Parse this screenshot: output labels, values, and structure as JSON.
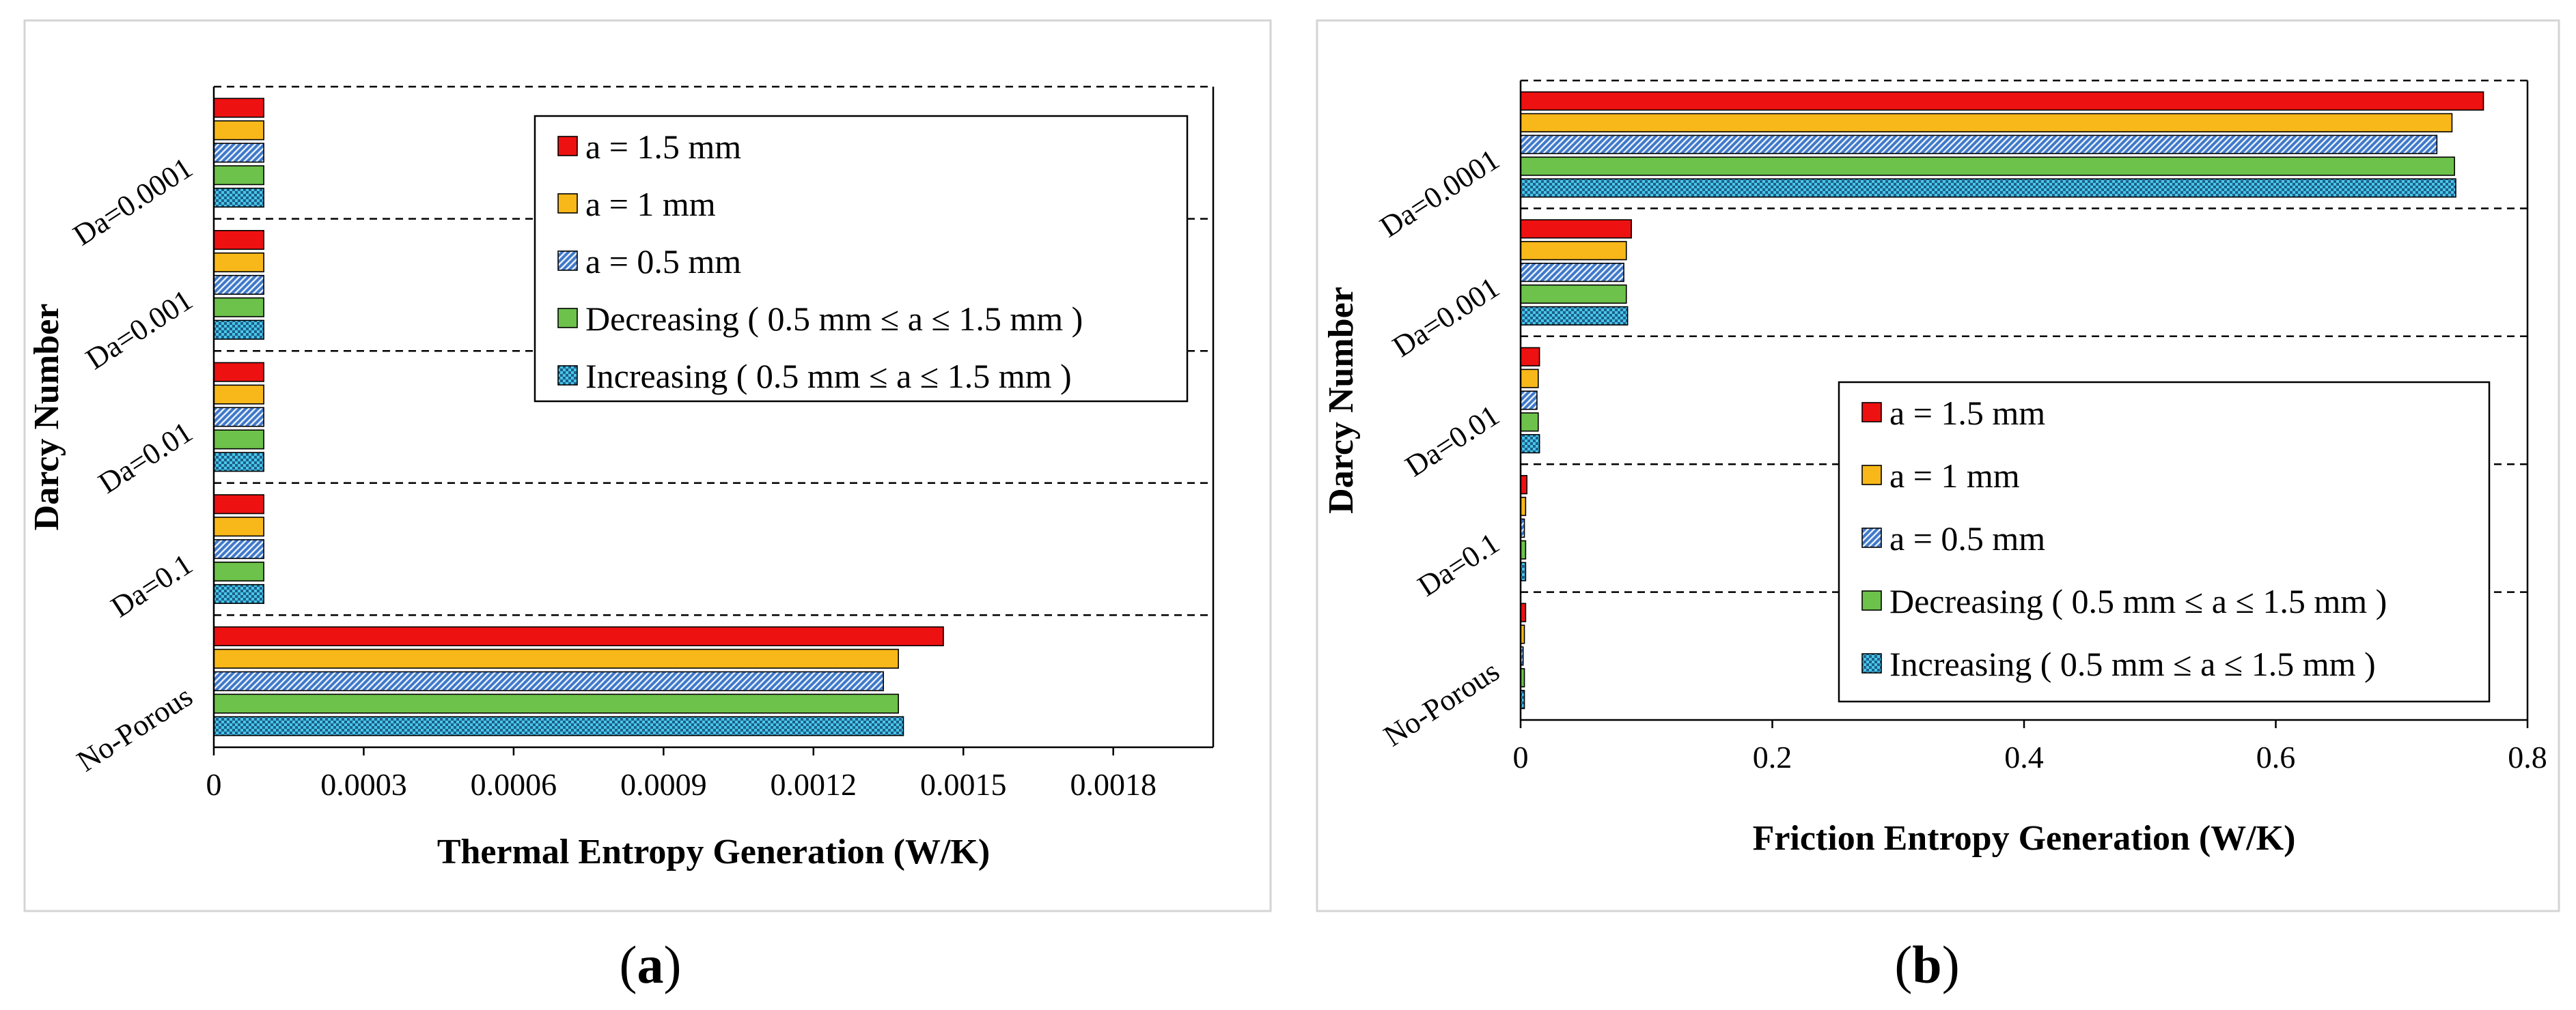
{
  "chart_data": [
    {
      "panel_label": "(a)",
      "panel_label_parts": {
        "open": "(",
        "letter": "a",
        "close": ")"
      },
      "type": "bar",
      "orientation": "horizontal",
      "xlabel": "Thermal Entropy Generation (W/K)",
      "ylabel": "Darcy Number",
      "xlim": [
        0,
        0.002
      ],
      "xticks": [
        "0",
        "0.0003",
        "0.0006",
        "0.0009",
        "0.0012",
        "0.0015",
        "0.0018"
      ],
      "xtick_values": [
        0,
        0.0003,
        0.0006,
        0.0009,
        0.0012,
        0.0015,
        0.0018
      ],
      "categories": [
        "Da=0.0001",
        "Da=0.001",
        "Da=0.01",
        "Da=0.1",
        "No-Porous"
      ],
      "legend_position": "top-right",
      "series": [
        {
          "name": "a = 1.5 mm",
          "values": [
            0.0001,
            0.0001,
            0.0001,
            0.0001,
            0.00146
          ]
        },
        {
          "name": "a = 1 mm",
          "values": [
            0.0001,
            0.0001,
            0.0001,
            0.0001,
            0.00137
          ]
        },
        {
          "name": "a = 0.5 mm",
          "values": [
            0.0001,
            0.0001,
            0.0001,
            0.0001,
            0.00134
          ]
        },
        {
          "name": "Decreasing ( 0.5 mm ≤ a ≤ 1.5 mm )",
          "values": [
            0.0001,
            0.0001,
            0.0001,
            0.0001,
            0.00137
          ]
        },
        {
          "name": "Increasing ( 0.5 mm ≤ a ≤ 1.5 mm )",
          "values": [
            0.0001,
            0.0001,
            0.0001,
            0.0001,
            0.00138
          ]
        }
      ]
    },
    {
      "panel_label": "(b)",
      "panel_label_parts": {
        "open": "(",
        "letter": "b",
        "close": ")"
      },
      "type": "bar",
      "orientation": "horizontal",
      "xlabel": "Friction Entropy Generation (W/K)",
      "ylabel": "Darcy Number",
      "xlim": [
        0,
        0.8
      ],
      "xticks": [
        "0",
        "0.2",
        "0.4",
        "0.6",
        "0.8"
      ],
      "xtick_values": [
        0,
        0.2,
        0.4,
        0.6,
        0.8
      ],
      "categories": [
        "Da=0.0001",
        "Da=0.001",
        "Da=0.01",
        "Da=0.1",
        "No-Porous"
      ],
      "legend_position": "bottom-right",
      "series": [
        {
          "name": "a = 1.5 mm",
          "values": [
            0.765,
            0.088,
            0.015,
            0.005,
            0.004
          ]
        },
        {
          "name": "a = 1 mm",
          "values": [
            0.74,
            0.084,
            0.014,
            0.004,
            0.003
          ]
        },
        {
          "name": "a = 0.5 mm",
          "values": [
            0.728,
            0.082,
            0.013,
            0.003,
            0.002
          ]
        },
        {
          "name": "Decreasing ( 0.5 mm ≤ a ≤ 1.5 mm )",
          "values": [
            0.742,
            0.084,
            0.014,
            0.004,
            0.003
          ]
        },
        {
          "name": "Increasing ( 0.5 mm ≤ a ≤ 1.5 mm )",
          "values": [
            0.743,
            0.085,
            0.015,
            0.004,
            0.003
          ]
        }
      ]
    }
  ],
  "series_styles": [
    {
      "fill": "#ee1111",
      "pattern": "none"
    },
    {
      "fill": "#f9b81a",
      "pattern": "none"
    },
    {
      "fill": "#3f78c8",
      "pattern": "hatch"
    },
    {
      "fill": "#6cc24a",
      "pattern": "none"
    },
    {
      "fill": "#47c7ea",
      "pattern": "check"
    }
  ]
}
